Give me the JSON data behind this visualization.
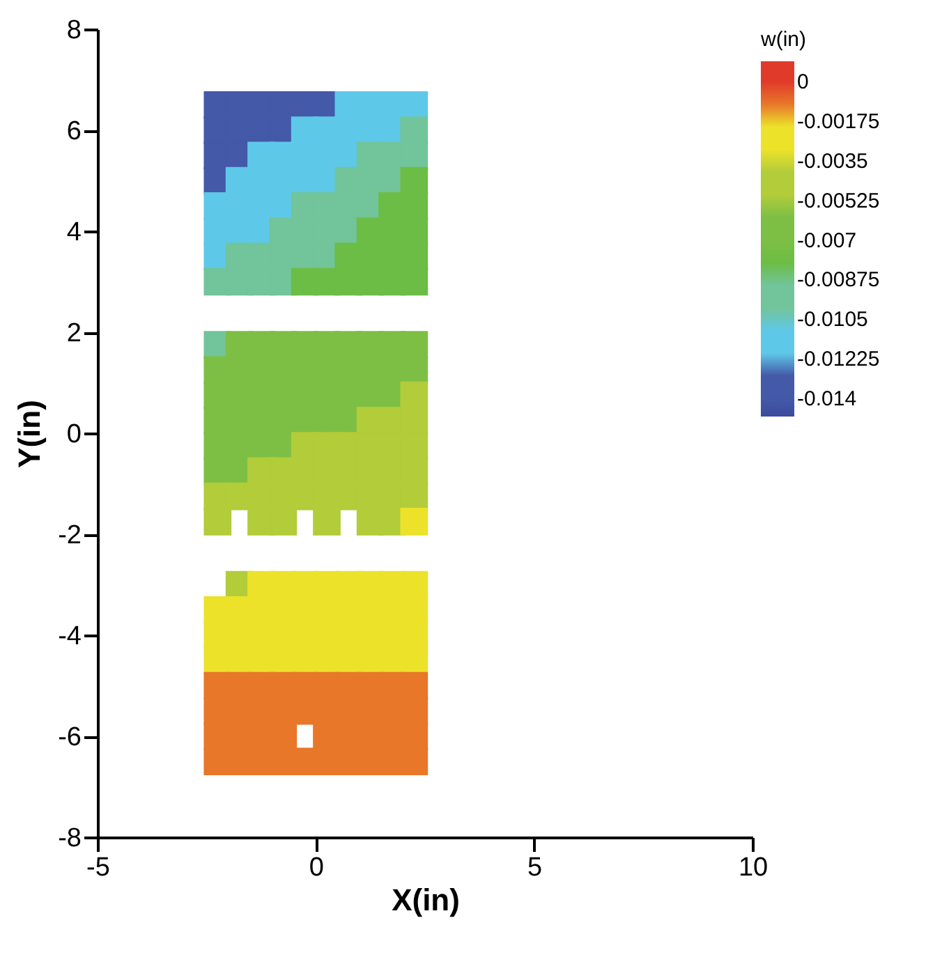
{
  "chart_data": {
    "type": "scatter",
    "xlabel": "X(in)",
    "ylabel": "Y(in)",
    "clabel": "w(in)",
    "clim": [
      -0.0148,
      0.0009
    ],
    "xlim": [
      -5,
      10
    ],
    "xticks": [
      -5,
      0,
      5,
      10
    ],
    "ylim": [
      -8,
      8
    ],
    "yticks": [
      -8,
      -6,
      -4,
      -2,
      0,
      2,
      4,
      6,
      8
    ],
    "cticks": [
      -0.014,
      -0.01225,
      -0.0105,
      -0.00875,
      -0.007,
      -0.00525,
      -0.0035,
      -0.00175,
      0
    ],
    "colors": [
      "#3b4a9e",
      "#4459a8",
      "#5ec8e8",
      "#72c49a",
      "#6cbd45",
      "#7dbf44",
      "#b2cc3a",
      "#ece22a",
      "#e8772a",
      "#e03a2a"
    ],
    "marker": "square",
    "grid": false,
    "series": [
      {
        "color": "#4459a8",
        "x": [
          -2.25,
          -1.75,
          -1.25,
          -0.75,
          -0.25,
          0.25,
          -2.25,
          -1.75,
          -1.25,
          -0.75,
          -2.25,
          -1.75,
          -2.25
        ],
        "values": [
          6.5,
          6.5,
          6.5,
          6.5,
          6.5,
          6.5,
          6,
          6,
          6,
          6,
          5.5,
          5.5,
          5
        ],
        "cvalues": [
          -0.0131,
          -0.0131,
          -0.0131,
          -0.0131,
          -0.0131,
          -0.0131,
          -0.0131,
          -0.0131,
          -0.0131,
          -0.0131,
          -0.0131,
          -0.0131,
          -0.0131
        ]
      },
      {
        "color": "#5ec8e8",
        "x": [
          0.75,
          1.25,
          1.75,
          2.25,
          -0.25,
          0.25,
          0.75,
          1.25,
          1.75,
          -1.25,
          -0.75,
          -0.25,
          0.25,
          0.75,
          -1.75,
          -1.25,
          -0.75,
          -0.25,
          0.25,
          -2.25,
          -1.75,
          -1.25,
          -0.75,
          -2.25,
          -1.75,
          -1.25,
          -2.25
        ],
        "values": [
          6.5,
          6.5,
          6.5,
          6.5,
          6,
          6,
          6,
          6,
          6,
          5.5,
          5.5,
          5.5,
          5.5,
          5.5,
          5,
          5,
          5,
          5,
          5,
          4.5,
          4.5,
          4.5,
          4.5,
          4,
          4,
          4,
          3.5
        ],
        "cvalues": [
          -0.0114,
          -0.0114,
          -0.0114,
          -0.0114,
          -0.0114,
          -0.0114,
          -0.0114,
          -0.0114,
          -0.0114,
          -0.0114,
          -0.0114,
          -0.0114,
          -0.0114,
          -0.0114,
          -0.0114,
          -0.0114,
          -0.0114,
          -0.0114,
          -0.0114,
          -0.0114,
          -0.0114,
          -0.0114,
          -0.0114,
          -0.0114,
          -0.0114,
          -0.0114,
          -0.0114
        ]
      },
      {
        "color": "#72c49a",
        "x": [
          2.25,
          1.25,
          1.75,
          2.25,
          0.75,
          1.25,
          1.75,
          -0.25,
          0.25,
          0.75,
          1.25,
          -0.75,
          -0.25,
          0.25,
          0.75,
          -1.75,
          -1.25,
          -0.75,
          -0.25,
          0.25,
          -2.25,
          -1.75,
          -1.25,
          -0.75,
          -2.25
        ],
        "values": [
          6,
          5.5,
          5.5,
          5.5,
          5,
          5,
          5,
          4.5,
          4.5,
          4.5,
          4.5,
          4,
          4,
          4,
          4,
          3.5,
          3.5,
          3.5,
          3.5,
          3.5,
          3,
          3,
          3,
          3,
          1.75
        ],
        "cvalues": [
          -0.0096,
          -0.0096,
          -0.0096,
          -0.0096,
          -0.0096,
          -0.0096,
          -0.0096,
          -0.0096,
          -0.0096,
          -0.0096,
          -0.0096,
          -0.0096,
          -0.0096,
          -0.0096,
          -0.0096,
          -0.0096,
          -0.0096,
          -0.0096,
          -0.0096,
          -0.0096,
          -0.0096,
          -0.0096,
          -0.0096,
          -0.0096,
          -0.0096
        ]
      },
      {
        "color": "#6cbd45",
        "x": [
          2.25,
          1.75,
          2.25,
          1.25,
          1.75,
          2.25,
          0.75,
          1.25,
          1.75,
          2.25,
          -0.25,
          0.25,
          0.75,
          1.25,
          1.75,
          2.25
        ],
        "values": [
          5,
          4.5,
          4.5,
          4,
          4,
          4,
          3.5,
          3.5,
          3.5,
          3.5,
          3,
          3,
          3,
          3,
          3,
          3
        ],
        "cvalues": [
          -0.0079,
          -0.0079,
          -0.0079,
          -0.0079,
          -0.0079,
          -0.0079,
          -0.0079,
          -0.0079,
          -0.0079,
          -0.0079,
          -0.0079,
          -0.0079,
          -0.0079,
          -0.0079,
          -0.0079,
          -0.0079
        ]
      },
      {
        "color": "#7dbf44",
        "x": [
          -1.75,
          -1.25,
          -0.75,
          -0.25,
          0.25,
          0.75,
          1.25,
          1.75,
          2.25,
          -2.25,
          -1.75,
          -1.25,
          -0.75,
          -0.25,
          0.25,
          0.75,
          1.25,
          1.75,
          2.25,
          -2.25,
          -1.75,
          -1.25,
          -0.75,
          -0.25,
          0.25,
          0.75,
          1.25,
          1.75,
          -2.25,
          -1.75,
          -1.25,
          -0.75,
          -0.25,
          0.25,
          0.75,
          -2.25,
          -1.75,
          -1.25,
          -0.75,
          -2.25,
          -1.75
        ],
        "values": [
          1.75,
          1.75,
          1.75,
          1.75,
          1.75,
          1.75,
          1.75,
          1.75,
          1.75,
          1.25,
          1.25,
          1.25,
          1.25,
          1.25,
          1.25,
          1.25,
          1.25,
          1.25,
          1.25,
          0.75,
          0.75,
          0.75,
          0.75,
          0.75,
          0.75,
          0.75,
          0.75,
          0.75,
          0.25,
          0.25,
          0.25,
          0.25,
          0.25,
          0.25,
          0.25,
          -0.25,
          -0.25,
          -0.25,
          -0.25,
          -0.75,
          -0.75
        ],
        "cvalues": [
          -0.0061,
          -0.0061,
          -0.0061,
          -0.0061,
          -0.0061,
          -0.0061,
          -0.0061,
          -0.0061,
          -0.0061,
          -0.0061,
          -0.0061,
          -0.0061,
          -0.0061,
          -0.0061,
          -0.0061,
          -0.0061,
          -0.0061,
          -0.0061,
          -0.0061,
          -0.0061,
          -0.0061,
          -0.0061,
          -0.0061,
          -0.0061,
          -0.0061,
          -0.0061,
          -0.0061,
          -0.0061,
          -0.0061,
          -0.0061,
          -0.0061,
          -0.0061,
          -0.0061,
          -0.0061,
          -0.0061,
          -0.0061,
          -0.0061,
          -0.0061,
          -0.0061,
          -0.0061,
          -0.0061
        ]
      },
      {
        "color": "#b2cc3a",
        "x": [
          2.25,
          1.25,
          1.75,
          2.25,
          -0.25,
          0.25,
          0.75,
          1.25,
          1.75,
          2.25,
          -1.25,
          -0.75,
          -0.25,
          0.25,
          0.75,
          1.25,
          1.75,
          2.25,
          -2.25,
          -1.75,
          -1.25,
          -0.75,
          -0.25,
          0.25,
          0.75,
          1.25,
          1.75,
          2.25,
          -2.25,
          -1.25,
          -0.75,
          0.25,
          1.25,
          1.75,
          -1.75
        ],
        "values": [
          0.75,
          0.25,
          0.25,
          0.25,
          -0.25,
          -0.25,
          -0.25,
          -0.25,
          -0.25,
          -0.25,
          -0.75,
          -0.75,
          -0.75,
          -0.75,
          -0.75,
          -0.75,
          -0.75,
          -0.75,
          -1.25,
          -1.25,
          -1.25,
          -1.25,
          -1.25,
          -1.25,
          -1.25,
          -1.25,
          -1.25,
          -1.25,
          -1.75,
          -1.75,
          -1.75,
          -1.75,
          -1.75,
          -1.75,
          -3
        ],
        "cvalues": [
          -0.0044,
          -0.0044,
          -0.0044,
          -0.0044,
          -0.0044,
          -0.0044,
          -0.0044,
          -0.0044,
          -0.0044,
          -0.0044,
          -0.0044,
          -0.0044,
          -0.0044,
          -0.0044,
          -0.0044,
          -0.0044,
          -0.0044,
          -0.0044,
          -0.0044,
          -0.0044,
          -0.0044,
          -0.0044,
          -0.0044,
          -0.0044,
          -0.0044,
          -0.0044,
          -0.0044,
          -0.0044,
          -0.0044,
          -0.0044,
          -0.0044,
          -0.0044,
          -0.0044,
          -0.0044,
          -0.0044
        ]
      },
      {
        "color": "#ece22a",
        "x": [
          2.25,
          -1.25,
          -0.75,
          -0.25,
          0.25,
          0.75,
          1.25,
          1.75,
          2.25,
          -2.25,
          -1.75,
          -1.25,
          -0.75,
          -0.25,
          0.25,
          0.75,
          1.25,
          1.75,
          2.25,
          -2.25,
          -1.75,
          -1.25,
          -0.75,
          -0.25,
          0.25,
          0.75,
          1.25,
          1.75,
          2.25,
          -2.25,
          -1.75,
          -1.25,
          -0.75,
          -0.25,
          0.25,
          0.75,
          1.25,
          1.75,
          2.25
        ],
        "values": [
          -1.75,
          -3,
          -3,
          -3,
          -3,
          -3,
          -3,
          -3,
          -3,
          -3.5,
          -3.5,
          -3.5,
          -3.5,
          -3.5,
          -3.5,
          -3.5,
          -3.5,
          -3.5,
          -3.5,
          -4,
          -4,
          -4,
          -4,
          -4,
          -4,
          -4,
          -4,
          -4,
          -4,
          -4.5,
          -4.5,
          -4.5,
          -4.5,
          -4.5,
          -4.5,
          -4.5,
          -4.5,
          -4.5,
          -4.5
        ],
        "cvalues": [
          -0.0026,
          -0.0026,
          -0.0026,
          -0.0026,
          -0.0026,
          -0.0026,
          -0.0026,
          -0.0026,
          -0.0026,
          -0.0026,
          -0.0026,
          -0.0026,
          -0.0026,
          -0.0026,
          -0.0026,
          -0.0026,
          -0.0026,
          -0.0026,
          -0.0026,
          -0.0026,
          -0.0026,
          -0.0026,
          -0.0026,
          -0.0026,
          -0.0026,
          -0.0026,
          -0.0026,
          -0.0026,
          -0.0026,
          -0.0026,
          -0.0026,
          -0.0026,
          -0.0026,
          -0.0026,
          -0.0026,
          -0.0026,
          -0.0026,
          -0.0026,
          -0.0026
        ]
      },
      {
        "color": "#e8772a",
        "x": [
          -2.25,
          -1.75,
          -1.25,
          -0.75,
          -0.25,
          0.25,
          0.75,
          1.25,
          1.75,
          2.25,
          -2.25,
          -1.75,
          -1.25,
          -0.75,
          -0.25,
          0.25,
          0.75,
          1.25,
          1.75,
          2.25,
          -2.25,
          -1.75,
          -1.25,
          -0.75,
          0.25,
          0.75,
          1.25,
          1.75,
          2.25,
          -2.25,
          -1.75,
          -1.25,
          -0.75,
          -0.25,
          0.25,
          0.75,
          1.25,
          1.75,
          2.25
        ],
        "values": [
          -5,
          -5,
          -5,
          -5,
          -5,
          -5,
          -5,
          -5,
          -5,
          -5,
          -5.5,
          -5.5,
          -5.5,
          -5.5,
          -5.5,
          -5.5,
          -5.5,
          -5.5,
          -5.5,
          -5.5,
          -6,
          -6,
          -6,
          -6,
          -6,
          -6,
          -6,
          -6,
          -6,
          -6.5,
          -6.5,
          -6.5,
          -6.5,
          -6.5,
          -6.5,
          -6.5,
          -6.5,
          -6.5,
          -6.5
        ],
        "cvalues": [
          -0.0009,
          -0.0009,
          -0.0009,
          -0.0009,
          -0.0009,
          -0.0009,
          -0.0009,
          -0.0009,
          -0.0009,
          -0.0009,
          -0.0009,
          -0.0009,
          -0.0009,
          -0.0009,
          -0.0009,
          -0.0009,
          -0.0009,
          -0.0009,
          -0.0009,
          -0.0009,
          -0.0009,
          -0.0009,
          -0.0009,
          -0.0009,
          -0.0009,
          -0.0009,
          -0.0009,
          -0.0009,
          -0.0009,
          -0.0009,
          -0.0009,
          -0.0009,
          -0.0009,
          -0.0009,
          -0.0009,
          -0.0009,
          -0.0009,
          -0.0009,
          -0.0009
        ]
      }
    ]
  }
}
